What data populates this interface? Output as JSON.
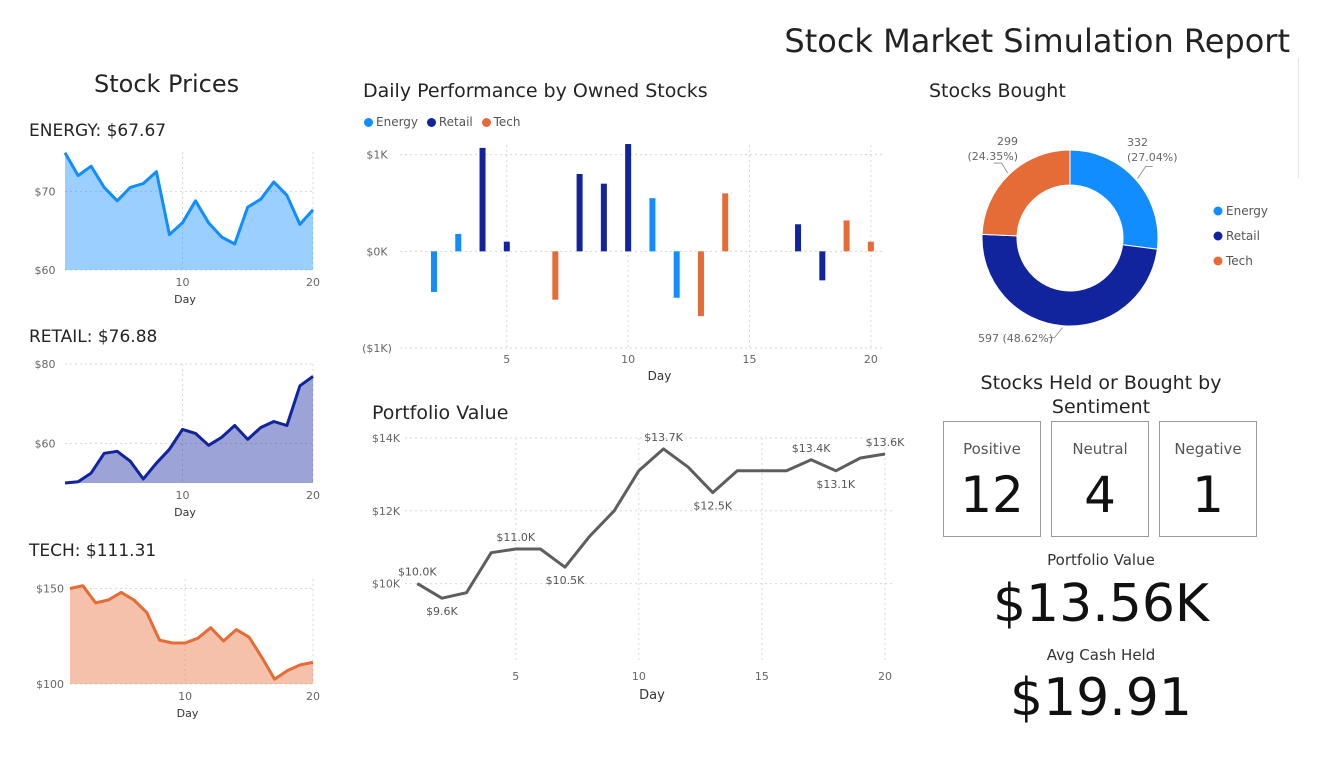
{
  "report": {
    "title": "Stock Market Simulation Report"
  },
  "colors": {
    "energy": "#118DFF",
    "retail": "#12239E",
    "tech": "#E66C37",
    "portfolio": "#605E5C"
  },
  "stock_prices": {
    "title": "Stock Prices",
    "energy_label": "ENERGY: $67.67",
    "retail_label": "RETAIL: $76.88",
    "tech_label": "TECH: $111.31"
  },
  "performance": {
    "title": "Daily Performance by Owned Stocks"
  },
  "portfolio": {
    "title": "Portfolio Value"
  },
  "bought": {
    "title": "Stocks Bought"
  },
  "sentiment": {
    "title_line1": "Stocks Held or Bought by",
    "title_line2": "Sentiment",
    "positive_label": "Positive",
    "positive_value": "12",
    "neutral_label": "Neutral",
    "neutral_value": "4",
    "negative_label": "Negative",
    "negative_value": "1"
  },
  "kpi": {
    "portfolio_label": "Portfolio Value",
    "portfolio_value": "$13.56K",
    "cash_label": "Avg Cash Held",
    "cash_value": "$19.91"
  },
  "chart_data": [
    {
      "id": "energy",
      "type": "area",
      "title": "ENERGY: $67.67",
      "xlabel": "Day",
      "ylabel": "",
      "x": [
        1,
        2,
        3,
        4,
        5,
        6,
        7,
        8,
        9,
        10,
        11,
        12,
        13,
        14,
        15,
        16,
        17,
        18,
        19,
        20
      ],
      "values": [
        74.9,
        72.0,
        73.2,
        70.5,
        68.8,
        70.5,
        71.0,
        72.5,
        64.5,
        66.0,
        68.8,
        66.0,
        64.2,
        63.3,
        68.0,
        69.0,
        71.2,
        69.5,
        65.8,
        67.67
      ],
      "xticks": [
        10,
        20
      ],
      "yticks": [
        60,
        70
      ],
      "ytick_labels": [
        "$60",
        "$70"
      ],
      "ylim": [
        60,
        75
      ],
      "xlim": [
        1,
        20
      ],
      "color": "#118DFF"
    },
    {
      "id": "retail",
      "type": "area",
      "title": "RETAIL: $76.88",
      "xlabel": "Day",
      "ylabel": "",
      "x": [
        1,
        2,
        3,
        4,
        5,
        6,
        7,
        8,
        9,
        10,
        11,
        12,
        13,
        14,
        15,
        16,
        17,
        18,
        19,
        20
      ],
      "values": [
        50.0,
        50.3,
        52.5,
        57.5,
        58.0,
        55.5,
        51.0,
        55.0,
        58.5,
        63.5,
        62.5,
        59.5,
        61.5,
        64.5,
        61.0,
        64.0,
        65.5,
        64.5,
        74.5,
        76.88
      ],
      "xticks": [
        10,
        20
      ],
      "yticks": [
        60,
        80
      ],
      "ytick_labels": [
        "$60",
        "$80"
      ],
      "ylim": [
        50,
        80
      ],
      "xlim": [
        1,
        20
      ],
      "color": "#12239E"
    },
    {
      "id": "tech",
      "type": "area",
      "title": "TECH: $111.31",
      "xlabel": "Day",
      "ylabel": "",
      "x": [
        1,
        2,
        3,
        4,
        5,
        6,
        7,
        8,
        9,
        10,
        11,
        12,
        13,
        14,
        15,
        16,
        17,
        18,
        19,
        20
      ],
      "values": [
        150.0,
        151.5,
        142.5,
        144.0,
        148.0,
        144.0,
        137.5,
        123.0,
        121.5,
        121.5,
        124.0,
        129.5,
        122.5,
        128.5,
        124.5,
        114.0,
        102.5,
        107.0,
        110.0,
        111.31
      ],
      "xticks": [
        10,
        20
      ],
      "yticks": [
        100,
        150
      ],
      "ytick_labels": [
        "$100",
        "$150"
      ],
      "ylim": [
        100,
        155
      ],
      "xlim": [
        1,
        20
      ],
      "color": "#E66C37"
    },
    {
      "id": "performance",
      "type": "bar",
      "title": "Daily Performance by Owned Stocks",
      "xlabel": "Day",
      "ylabel": "",
      "xticks": [
        5,
        10,
        15,
        20
      ],
      "yticks": [
        -1000,
        0,
        1000
      ],
      "ytick_labels": [
        "($1K)",
        "$0K",
        "$1K"
      ],
      "ylim": [
        -1000,
        1100
      ],
      "xlim": [
        0.6,
        20.5
      ],
      "legend": "top-left",
      "series": [
        {
          "name": "Energy",
          "color": "#118DFF",
          "points": [
            [
              2,
              -420
            ],
            [
              3,
              180
            ],
            [
              11,
              550
            ],
            [
              12,
              -480
            ]
          ]
        },
        {
          "name": "Retail",
          "color": "#12239E",
          "points": [
            [
              4,
              1070
            ],
            [
              5,
              100
            ],
            [
              8,
              800
            ],
            [
              9,
              700
            ],
            [
              10,
              1110
            ],
            [
              17,
              280
            ],
            [
              18,
              -300
            ]
          ]
        },
        {
          "name": "Tech",
          "color": "#E66C37",
          "points": [
            [
              7,
              -500
            ],
            [
              13,
              -670
            ],
            [
              14,
              600
            ],
            [
              19,
              320
            ],
            [
              20,
              100
            ]
          ]
        }
      ]
    },
    {
      "id": "portfolio",
      "type": "line",
      "title": "Portfolio Value",
      "xlabel": "Day",
      "ylabel": "",
      "x": [
        1,
        2,
        3,
        4,
        5,
        6,
        7,
        8,
        9,
        10,
        11,
        12,
        13,
        14,
        15,
        16,
        17,
        18,
        19,
        20
      ],
      "values": [
        10000,
        9600,
        9750,
        10850,
        10950,
        10950,
        10450,
        11300,
        12000,
        13100,
        13700,
        13200,
        12500,
        13100,
        13100,
        13100,
        13400,
        13100,
        13450,
        13560
      ],
      "data_labels": [
        {
          "i": 0,
          "text": "$10.0K",
          "pos": "above"
        },
        {
          "i": 1,
          "text": "$9.6K",
          "pos": "below"
        },
        {
          "i": 4,
          "text": "$11.0K",
          "pos": "above"
        },
        {
          "i": 6,
          "text": "$10.5K",
          "pos": "below"
        },
        {
          "i": 10,
          "text": "$13.7K",
          "pos": "above"
        },
        {
          "i": 12,
          "text": "$12.5K",
          "pos": "below"
        },
        {
          "i": 16,
          "text": "$13.4K",
          "pos": "above"
        },
        {
          "i": 17,
          "text": "$13.1K",
          "pos": "below"
        },
        {
          "i": 19,
          "text": "$13.6K",
          "pos": "above"
        }
      ],
      "xticks": [
        5,
        10,
        15,
        20
      ],
      "yticks": [
        10000,
        12000,
        14000
      ],
      "ytick_labels": [
        "$10K",
        "$12K",
        "$14K"
      ],
      "ylim": [
        9000,
        14000
      ],
      "xlim": [
        0.5,
        20
      ],
      "color": "#605E5C"
    },
    {
      "id": "bought",
      "type": "pie",
      "title": "Stocks Bought",
      "legend": "right",
      "slices": [
        {
          "name": "Energy",
          "value": 332,
          "label1": "332",
          "label2": "(27.04%)",
          "color": "#118DFF"
        },
        {
          "name": "Retail",
          "value": 597,
          "label1": "597 (48.62%)",
          "label2": "",
          "color": "#12239E"
        },
        {
          "name": "Tech",
          "value": 299,
          "label1": "299",
          "label2": "(24.35%)",
          "color": "#E66C37"
        }
      ]
    }
  ]
}
